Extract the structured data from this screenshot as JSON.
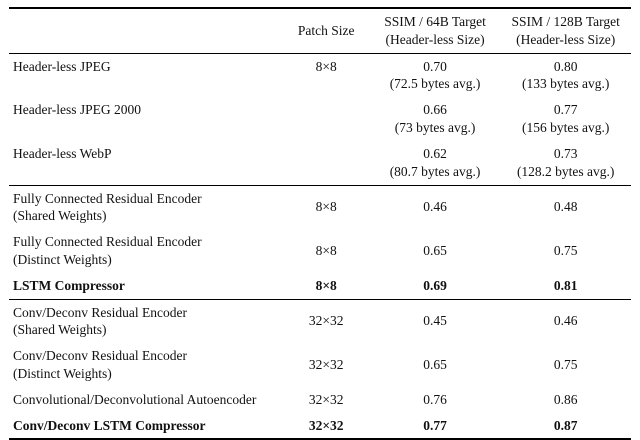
{
  "table": {
    "col_headers": {
      "patch": "Patch Size",
      "ssim64_l1": "SSIM / 64B Target",
      "ssim64_l2": "(Header-less Size)",
      "ssim128_l1": "SSIM / 128B Target",
      "ssim128_l2": "(Header-less Size)"
    },
    "rows": [
      {
        "label": "Header-less JPEG",
        "patch": "8×8",
        "s64": "0.70",
        "s64avg": "(72.5 bytes avg.)",
        "s128": "0.80",
        "s128avg": "(133 bytes avg.)"
      },
      {
        "label": "Header-less JPEG 2000",
        "patch": "",
        "s64": "0.66",
        "s64avg": "(73 bytes avg.)",
        "s128": "0.77",
        "s128avg": "(156 bytes avg.)"
      },
      {
        "label": "Header-less WebP",
        "patch": "",
        "s64": "0.62",
        "s64avg": "(80.7 bytes avg.)",
        "s128": "0.73",
        "s128avg": "(128.2 bytes avg.)"
      },
      {
        "label1": "Fully Connected Residual Encoder",
        "label2": "(Shared Weights)",
        "patch": "8×8",
        "s64": "0.46",
        "s128": "0.48"
      },
      {
        "label1": "Fully Connected Residual Encoder",
        "label2": "(Distinct Weights)",
        "patch": "8×8",
        "s64": "0.65",
        "s128": "0.75"
      },
      {
        "label": "LSTM Compressor",
        "patch": "8×8",
        "s64": "0.69",
        "s128": "0.81"
      },
      {
        "label1": "Conv/Deconv Residual Encoder",
        "label2": "(Shared Weights)",
        "patch": "32×32",
        "s64": "0.45",
        "s128": "0.46"
      },
      {
        "label1": "Conv/Deconv Residual Encoder",
        "label2": "(Distinct Weights)",
        "patch": "32×32",
        "s64": "0.65",
        "s128": "0.75"
      },
      {
        "label": "Convolutional/Deconvolutional Autoencoder",
        "patch": "32×32",
        "s64": "0.76",
        "s128": "0.86"
      },
      {
        "label": "Conv/Deconv LSTM Compressor",
        "patch": "32×32",
        "s64": "0.77",
        "s128": "0.87"
      }
    ]
  }
}
